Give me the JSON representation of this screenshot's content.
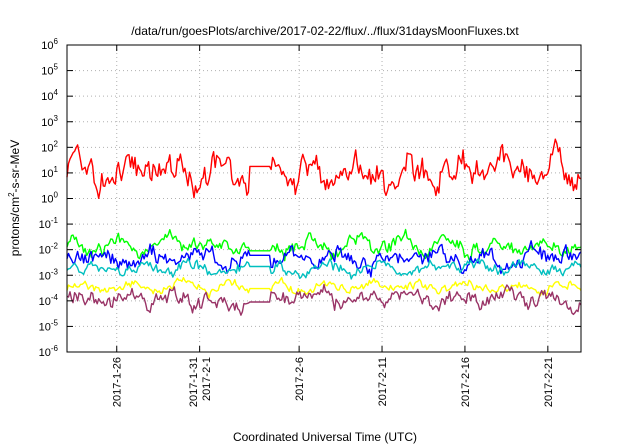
{
  "chart_data": {
    "type": "line",
    "title": "/data/run/goesPlots/archive/2017-02-22/flux/../flux/31daysMoonFluxes.txt",
    "xlabel": "Coordinated Universal Time (UTC)",
    "ylabel": {
      "pre": "protons/cm",
      "sup": "2",
      "post": "-s-sr-MeV"
    },
    "y_scale": "log",
    "ylim": [
      1e-06,
      1000000.0
    ],
    "y_ticks": [
      {
        "value": 1e-06,
        "base": "10",
        "exp": "-6"
      },
      {
        "value": 1e-05,
        "base": "10",
        "exp": "-5"
      },
      {
        "value": 0.0001,
        "base": "10",
        "exp": "-4"
      },
      {
        "value": 0.001,
        "base": "10",
        "exp": "-3"
      },
      {
        "value": 0.01,
        "base": "10",
        "exp": "-2"
      },
      {
        "value": 0.1,
        "base": "10",
        "exp": "-1"
      },
      {
        "value": 1,
        "base": "10",
        "exp": "0"
      },
      {
        "value": 10,
        "base": "10",
        "exp": "1"
      },
      {
        "value": 100,
        "base": "10",
        "exp": "2"
      },
      {
        "value": 1000,
        "base": "10",
        "exp": "3"
      },
      {
        "value": 10000,
        "base": "10",
        "exp": "4"
      },
      {
        "value": 100000,
        "base": "10",
        "exp": "5"
      },
      {
        "value": 1000000,
        "base": "10",
        "exp": "6"
      }
    ],
    "xlim": [
      "2017-01-23",
      "2017-02-23"
    ],
    "x_ticks": [
      {
        "date": "2017-01-26",
        "lines": [
          "2017-1-26"
        ]
      },
      {
        "date": "2017-01-31",
        "lines": [
          "2017-1-31",
          "2017-2-1"
        ]
      },
      {
        "date": "2017-02-06",
        "lines": [
          "2017-2-6"
        ]
      },
      {
        "date": "2017-02-11",
        "lines": [
          "2017-2-11"
        ]
      },
      {
        "date": "2017-02-16",
        "lines": [
          "2017-2-16"
        ]
      },
      {
        "date": "2017-02-21",
        "lines": [
          "2017-2-21"
        ]
      }
    ],
    "grid": true,
    "series": [
      {
        "color": "#ff0000",
        "center": 12,
        "spread": 0.75,
        "gap_value": 18
      },
      {
        "color": "#00ff00",
        "center": 0.013,
        "spread": 0.4,
        "gap_value": 0.009
      },
      {
        "color": "#0000ff",
        "center": 0.0045,
        "spread": 0.45,
        "gap_value": 0.006
      },
      {
        "color": "#00bfbf",
        "center": 0.0018,
        "spread": 0.3,
        "gap_value": 0.0022
      },
      {
        "color": "#ffff00",
        "center": 0.00035,
        "spread": 0.25,
        "gap_value": 0.0003
      },
      {
        "color": "#993366",
        "center": 0.00012,
        "spread": 0.4,
        "gap_value": 9e-05
      }
    ]
  }
}
